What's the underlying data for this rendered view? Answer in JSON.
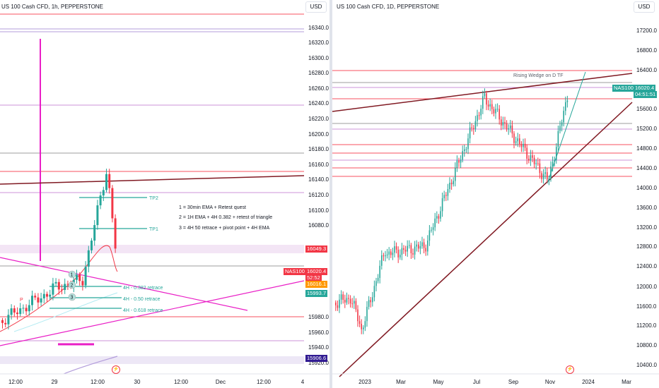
{
  "left_chart": {
    "title": "US 100 Cash CFD, 1h, PEPPERSTONE",
    "currency": "USD",
    "price_ticks": [
      "16340.0",
      "16320.0",
      "16300.0",
      "16280.0",
      "16260.0",
      "16240.0",
      "16220.0",
      "16200.0",
      "16180.0",
      "16160.0",
      "16140.0",
      "16120.0",
      "16100.0",
      "16080.0",
      "15980.0",
      "15960.0",
      "15940.0",
      "15920.0"
    ],
    "time_ticks": [
      "12:00",
      "29",
      "12:00",
      "30",
      "12:00",
      "Dec",
      "12:00",
      "4"
    ],
    "notes": [
      "1 = 30min EMA + Retest quest",
      "2 = 1H EMA + 4H 0.382 + retest of triangle",
      "3 = 4H 50 retrace + pivot point + 4H EMA"
    ],
    "tp_labels": [
      "TP2",
      "TP1"
    ],
    "retrace_labels": [
      "4H - 0.382 retrace",
      "4H - 0.50 retrace",
      "4H - 0.618 retrace"
    ],
    "marker_labels": [
      "1",
      "2",
      "3"
    ],
    "pivot_label": "P",
    "price_tags": {
      "level_1": "16049.3",
      "symbol": "NAS100",
      "current": "16020.4",
      "countdown": "52:52",
      "level_2": "16016.1",
      "level_3": "15993.7",
      "level_4": "15906.6"
    }
  },
  "right_chart": {
    "title": "US 100 Cash CFD, 1D, PEPPERSTONE",
    "currency": "USD",
    "price_ticks": [
      "17200.0",
      "16800.0",
      "16400.0",
      "15600.0",
      "15200.0",
      "14800.0",
      "14400.0",
      "14000.0",
      "13600.0",
      "13200.0",
      "12800.0",
      "12400.0",
      "12000.0",
      "11600.0",
      "11200.0",
      "10800.0",
      "10400.0"
    ],
    "time_ticks": [
      "2023",
      "Mar",
      "May",
      "Jul",
      "Sep",
      "Nov",
      "2024",
      "Mar"
    ],
    "annotation": "Rising Wedge on D TF",
    "price_tags": {
      "symbol": "NAS100",
      "current": "16020.4",
      "countdown": "04:51:51"
    }
  },
  "colors": {
    "up": "#26a69a",
    "down": "#f23645",
    "magenta": "#e91ec6",
    "wedge": "#801922",
    "hline_red": "#f7525f",
    "hline_purple": "#b39ddb",
    "zone": "#e1bee7"
  }
}
